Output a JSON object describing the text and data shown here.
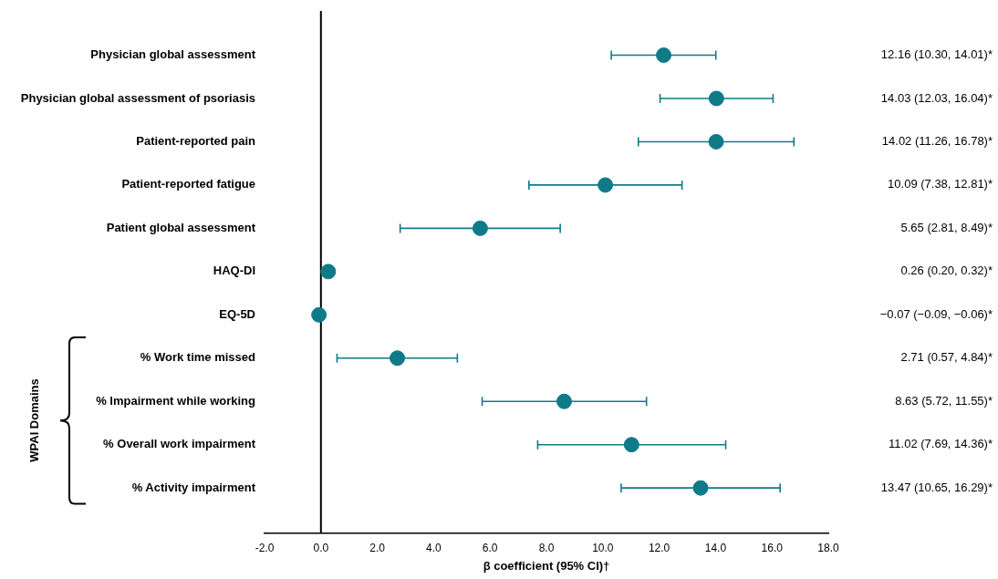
{
  "chart_data": {
    "type": "scatter",
    "orientation": "horizontal",
    "xlabel": "β coefficient (95% CI)†",
    "categories": [
      "Physician global assessment",
      "Physician global assessment of psoriasis",
      "Patient-reported pain",
      "Patient-reported fatigue",
      "Patient global assessment",
      "HAQ-DI",
      "EQ-5D",
      "% Work time missed",
      "% Impairment while working",
      "% Overall work impairment",
      "% Activity impairment"
    ],
    "values": [
      12.16,
      14.03,
      14.02,
      10.09,
      5.65,
      0.26,
      -0.07,
      2.71,
      8.63,
      11.02,
      13.47
    ],
    "errors": [
      [
        10.3,
        14.01
      ],
      [
        12.03,
        16.04
      ],
      [
        11.26,
        16.78
      ],
      [
        7.38,
        12.81
      ],
      [
        2.81,
        8.49
      ],
      [
        0.2,
        0.32
      ],
      [
        -0.09,
        -0.06
      ],
      [
        0.57,
        4.84
      ],
      [
        5.72,
        11.55
      ],
      [
        7.69,
        14.36
      ],
      [
        10.65,
        16.29
      ]
    ],
    "value_labels": [
      "12.16 (10.30, 14.01)*",
      "14.03 (12.03, 16.04)*",
      "14.02 (11.26, 16.78)*",
      "10.09 (7.38, 12.81)*",
      "5.65 (2.81, 8.49)*",
      "0.26 (0.20, 0.32)*",
      "−0.07 (−0.09, −0.06)*",
      "2.71 (0.57, 4.84)*",
      "8.63 (5.72, 11.55)*",
      "11.02 (7.69, 14.36)*",
      "13.47 (10.65, 16.29)*"
    ],
    "color": "#0f7b88",
    "marker": "circle",
    "xlim": [
      -2,
      18
    ],
    "xticks": [
      {
        "value": -2,
        "label": "-2.0"
      },
      {
        "value": 0,
        "label": "0.0"
      },
      {
        "value": 2,
        "label": "2.0"
      },
      {
        "value": 4,
        "label": "4.0"
      },
      {
        "value": 6,
        "label": "6.0"
      },
      {
        "value": 8,
        "label": "8.0"
      },
      {
        "value": 10,
        "label": "10.0"
      },
      {
        "value": 12,
        "label": "12.0"
      },
      {
        "value": 14,
        "label": "14.0"
      },
      {
        "value": 16,
        "label": "16.0"
      },
      {
        "value": 18,
        "label": "18.0"
      }
    ],
    "ref_lines": [
      {
        "axis": "x",
        "value": 0,
        "color": "#000000"
      }
    ],
    "annotations": [
      "WPAI Domains"
    ],
    "grid": false,
    "legend": false
  }
}
